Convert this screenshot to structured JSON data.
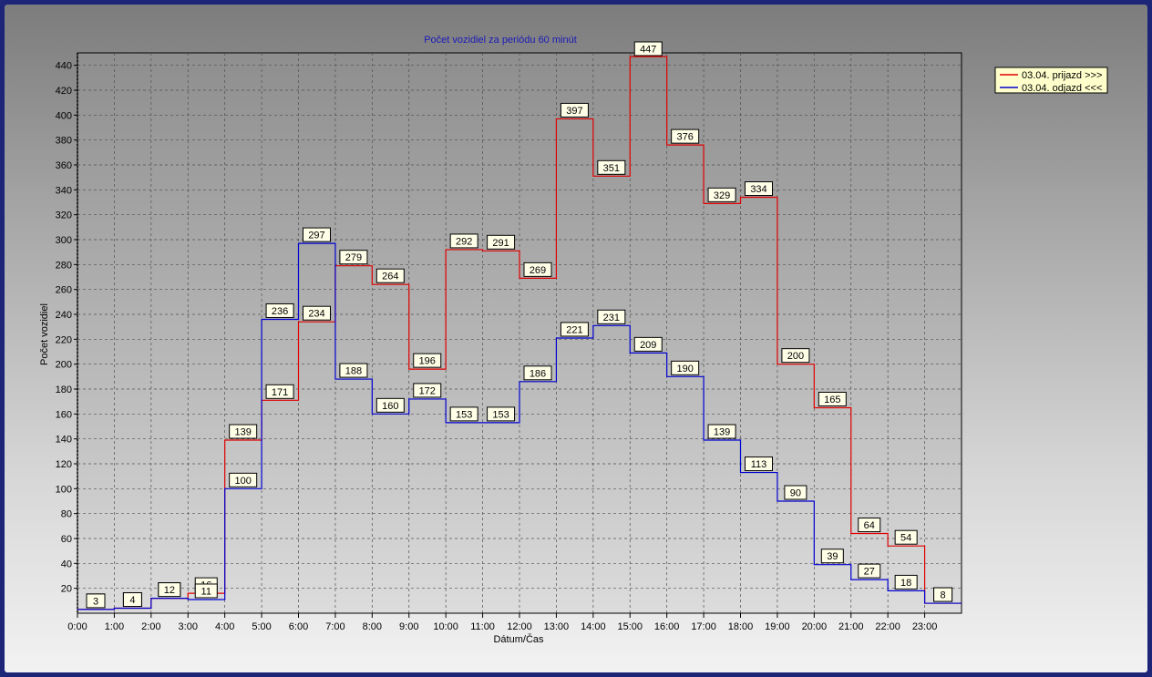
{
  "chart_data": {
    "type": "line",
    "step": true,
    "title": "Počet vozidiel za periódu 60 minút",
    "xlabel": "Dátum/Čas",
    "ylabel": "Počet vozidiel",
    "categories": [
      "0:00",
      "1:00",
      "2:00",
      "3:00",
      "4:00",
      "5:00",
      "6:00",
      "7:00",
      "8:00",
      "9:00",
      "10:00",
      "11:00",
      "12:00",
      "13:00",
      "14:00",
      "15:00",
      "16:00",
      "17:00",
      "18:00",
      "19:00",
      "20:00",
      "21:00",
      "22:00",
      "23:00"
    ],
    "yticks": [
      20,
      40,
      60,
      80,
      100,
      120,
      140,
      160,
      180,
      200,
      220,
      240,
      260,
      280,
      300,
      320,
      340,
      360,
      380,
      400,
      420,
      440
    ],
    "ylim": [
      0,
      450
    ],
    "grid": true,
    "legend_position": "top-right",
    "series": [
      {
        "name": "03.04.  prijazd >>>",
        "color": "#e00000",
        "values": [
          3,
          4,
          12,
          16,
          139,
          171,
          234,
          279,
          264,
          196,
          292,
          291,
          269,
          397,
          351,
          447,
          376,
          329,
          334,
          200,
          165,
          64,
          54,
          8
        ]
      },
      {
        "name": "03.04.  odjazd <<<",
        "color": "#0000d0",
        "values": [
          3,
          4,
          12,
          11,
          100,
          236,
          297,
          188,
          160,
          172,
          153,
          153,
          186,
          221,
          231,
          209,
          190,
          139,
          113,
          90,
          39,
          27,
          18,
          8
        ]
      }
    ]
  }
}
